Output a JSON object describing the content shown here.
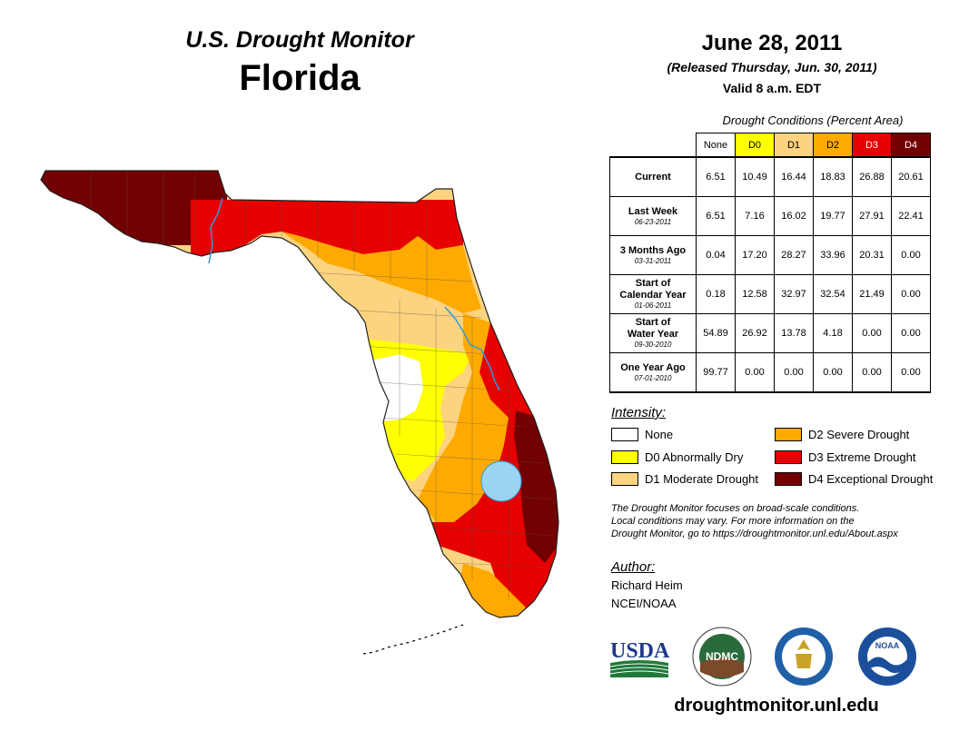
{
  "header": {
    "title_line1": "U.S. Drought Monitor",
    "title_line2": "Florida",
    "date": "June 28, 2011",
    "released": "(Released Thursday, Jun. 30, 2011)",
    "valid": "Valid 8 a.m. EDT"
  },
  "table": {
    "title": "Drought Conditions (Percent Area)",
    "columns": [
      "None",
      "D0",
      "D1",
      "D2",
      "D3",
      "D4"
    ],
    "column_colors": [
      "#ffffff",
      "#ffff00",
      "#fcd37f",
      "#ffaa00",
      "#e60000",
      "#730000"
    ],
    "rows": [
      {
        "label": "Current",
        "label2": "",
        "date": "",
        "values": [
          "6.51",
          "10.49",
          "16.44",
          "18.83",
          "26.88",
          "20.61"
        ]
      },
      {
        "label": "Last Week",
        "label2": "",
        "date": "06-23-2011",
        "values": [
          "6.51",
          "7.16",
          "16.02",
          "19.77",
          "27.91",
          "22.41"
        ]
      },
      {
        "label": "3 Months Ago",
        "label2": "",
        "date": "03-31-2011",
        "values": [
          "0.04",
          "17.20",
          "28.27",
          "33.96",
          "20.31",
          "0.00"
        ]
      },
      {
        "label": "Start of",
        "label2": "Calendar Year",
        "date": "01-06-2011",
        "values": [
          "0.18",
          "12.58",
          "32.97",
          "32.54",
          "21.49",
          "0.00"
        ]
      },
      {
        "label": "Start of",
        "label2": "Water Year",
        "date": "09-30-2010",
        "values": [
          "54.89",
          "26.92",
          "13.78",
          "4.18",
          "0.00",
          "0.00"
        ]
      },
      {
        "label": "One Year Ago",
        "label2": "",
        "date": "07-01-2010",
        "values": [
          "99.77",
          "0.00",
          "0.00",
          "0.00",
          "0.00",
          "0.00"
        ]
      }
    ]
  },
  "legend": {
    "title": "Intensity:",
    "items": [
      {
        "label": "None",
        "color": "#ffffff"
      },
      {
        "label": "D0 Abnormally Dry",
        "color": "#ffff00"
      },
      {
        "label": "D1 Moderate Drought",
        "color": "#fcd37f"
      },
      {
        "label": "D2 Severe Drought",
        "color": "#ffaa00"
      },
      {
        "label": "D3 Extreme Drought",
        "color": "#e60000"
      },
      {
        "label": "D4 Exceptional Drought",
        "color": "#730000"
      }
    ]
  },
  "disclaimer": {
    "line1": "The Drought Monitor focuses on broad-scale conditions.",
    "line2": "Local conditions may vary. For more information on the",
    "line3": "Drought Monitor, go to https://droughtmonitor.unl.edu/About.aspx"
  },
  "author": {
    "label": "Author:",
    "name": "Richard Heim",
    "org": "NCEI/NOAA"
  },
  "logos": {
    "usda": "USDA",
    "ndmc": "NDMC",
    "noaa": "NOAA"
  },
  "footer": {
    "url": "droughtmonitor.unl.edu"
  },
  "colors": {
    "none": "#ffffff",
    "d0": "#ffff00",
    "d1": "#fcd37f",
    "d2": "#ffaa00",
    "d3": "#e60000",
    "d4": "#730000",
    "water": "#9bd4f2",
    "river": "#3399dd"
  }
}
